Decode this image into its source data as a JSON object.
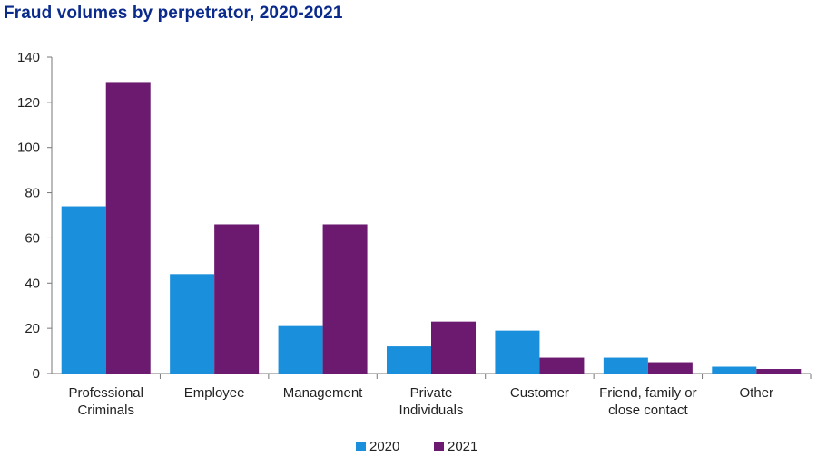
{
  "chart_data": {
    "type": "bar",
    "title": "Fraud volumes by perpetrator, 2020-2021",
    "categories": [
      [
        "Professional",
        "Criminals"
      ],
      [
        "Employee"
      ],
      [
        "Management"
      ],
      [
        "Private",
        "Individuals"
      ],
      [
        "Customer"
      ],
      [
        "Friend, family or",
        "close contact"
      ],
      [
        "Other"
      ]
    ],
    "series": [
      {
        "name": "2020",
        "color": "#1a8fdb",
        "values": [
          74,
          44,
          21,
          12,
          19,
          7,
          3
        ]
      },
      {
        "name": "2021",
        "color": "#6b1a70",
        "values": [
          129,
          66,
          66,
          23,
          7,
          5,
          2
        ]
      }
    ],
    "ylim": [
      0,
      140
    ],
    "yticks": [
      0,
      20,
      40,
      60,
      80,
      100,
      120,
      140
    ],
    "xlabel": "",
    "ylabel": "",
    "grid": false,
    "legend_position": "bottom-center"
  }
}
